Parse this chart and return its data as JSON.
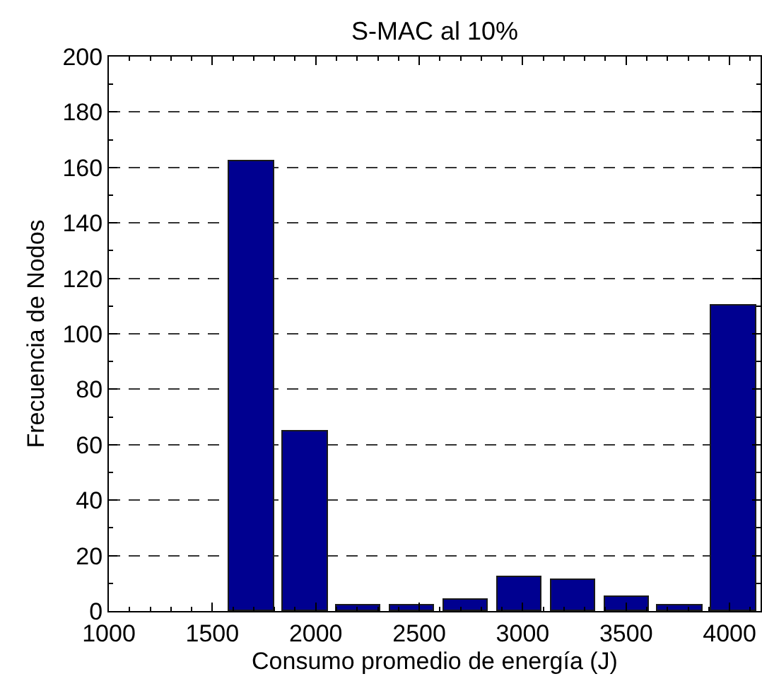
{
  "chart_data": {
    "type": "histogram",
    "title": "S-MAC al 10%",
    "xlabel": "Consumo promedio de energía (J)",
    "ylabel": "Frecuencia de Nodos",
    "bins": [
      1560,
      1819,
      2078,
      2337,
      2596,
      2855,
      3114,
      3373,
      3632,
      3891,
      4150
    ],
    "values": [
      162,
      65,
      2,
      2,
      4,
      12,
      11,
      5,
      2,
      110
    ],
    "color": "#000090",
    "xlim": [
      1000,
      4150
    ],
    "xticks": [
      1000,
      {
        "value": 1100,
        "label": null
      },
      {
        "value": 1200,
        "label": null
      },
      {
        "value": 1300,
        "label": null
      },
      {
        "value": 1400,
        "label": null
      },
      1500,
      {
        "value": 1600,
        "label": null
      },
      {
        "value": 1700,
        "label": null
      },
      {
        "value": 1800,
        "label": null
      },
      {
        "value": 1900,
        "label": null
      },
      2000,
      {
        "value": 2100,
        "label": null
      },
      {
        "value": 2200,
        "label": null
      },
      {
        "value": 2300,
        "label": null
      },
      {
        "value": 2400,
        "label": null
      },
      2500,
      {
        "value": 2600,
        "label": null
      },
      {
        "value": 2700,
        "label": null
      },
      {
        "value": 2800,
        "label": null
      },
      {
        "value": 2900,
        "label": null
      },
      3000,
      {
        "value": 3100,
        "label": null
      },
      {
        "value": 3200,
        "label": null
      },
      {
        "value": 3300,
        "label": null
      },
      {
        "value": 3400,
        "label": null
      },
      3500,
      {
        "value": 3600,
        "label": null
      },
      {
        "value": 3700,
        "label": null
      },
      {
        "value": 3800,
        "label": null
      },
      {
        "value": 3900,
        "label": null
      },
      4000,
      {
        "value": 4100,
        "label": null
      }
    ],
    "ylim": [
      0,
      200
    ],
    "yticks": [
      0,
      {
        "value": 10,
        "label": null
      },
      20,
      {
        "value": 30,
        "label": null
      },
      40,
      {
        "value": 50,
        "label": null
      },
      60,
      {
        "value": 70,
        "label": null
      },
      80,
      {
        "value": 90,
        "label": null
      },
      100,
      {
        "value": 110,
        "label": null
      },
      120,
      {
        "value": 130,
        "label": null
      },
      140,
      {
        "value": 150,
        "label": null
      },
      160,
      {
        "value": 170,
        "label": null
      },
      180,
      {
        "value": 190,
        "label": null
      },
      200
    ],
    "grid": "y"
  }
}
